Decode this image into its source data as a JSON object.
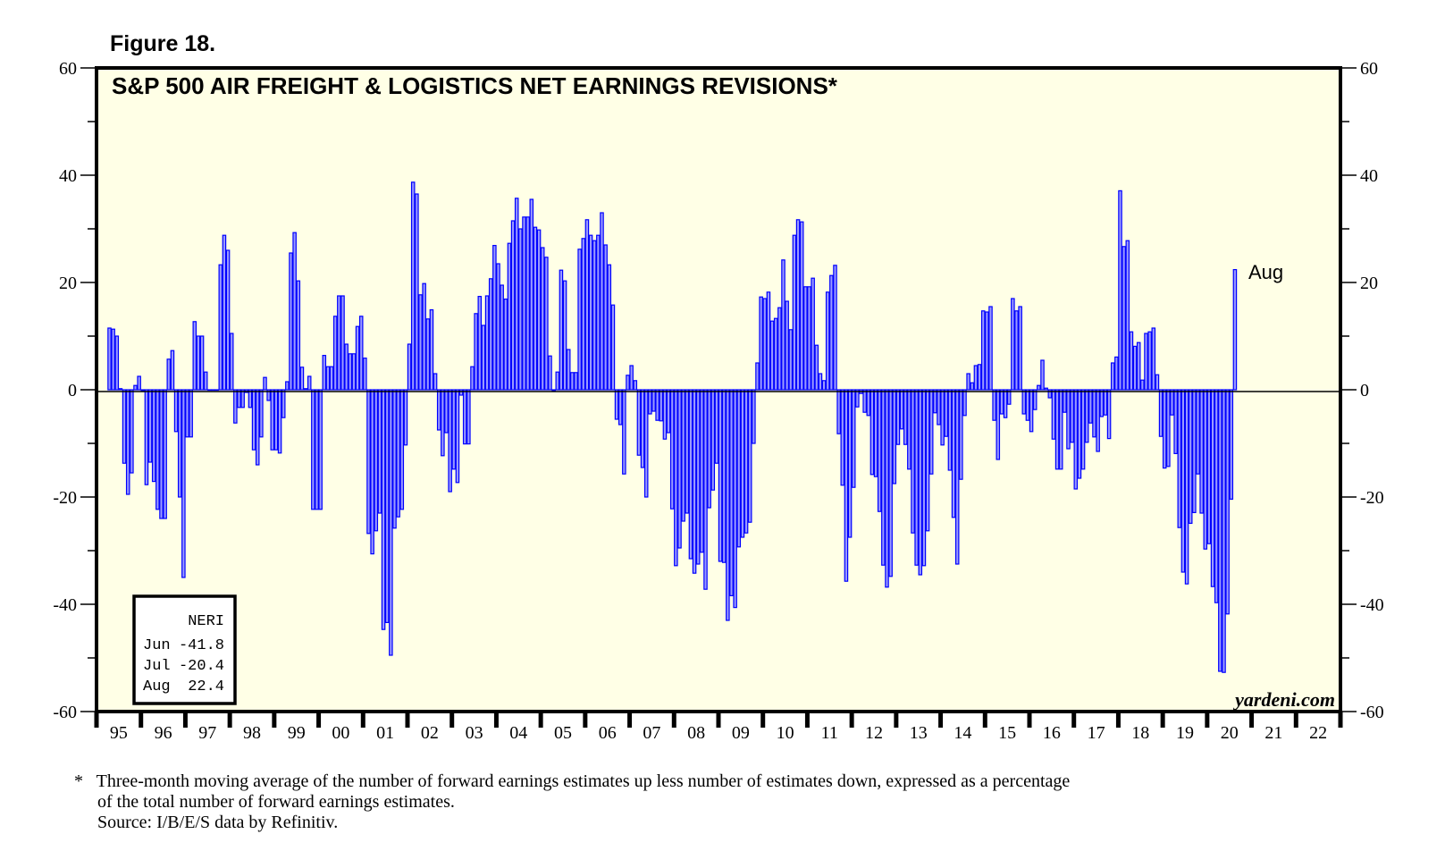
{
  "figure_label": "Figure 18.",
  "footnote": {
    "line1": "*   Three-month moving average of the number of forward earnings estimates up less number of estimates down, expressed as a percentage",
    "line2": "of the total number of forward earnings estimates.",
    "line3": "Source: I/B/E/S data by Refinitiv."
  },
  "watermark": "yardeni.com",
  "legend": {
    "title": "NERI",
    "rows": [
      {
        "month": "Jun",
        "value": "-41.8"
      },
      {
        "month": "Jul",
        "value": "-20.4"
      },
      {
        "month": "Aug",
        "value": "22.4"
      }
    ]
  },
  "colors": {
    "bar_fill": "#9999ff",
    "bar_stroke": "#0000ff",
    "plot_bg": "#ffffe6"
  },
  "chart_data": {
    "type": "bar",
    "title": "S&P 500 AIR FREIGHT & LOGISTICS NET EARNINGS REVISIONS*",
    "frequency": "monthly",
    "end": "2020-08",
    "annotation": "Aug",
    "ylim": [
      -60,
      60
    ],
    "yticks": [
      -60,
      -40,
      -20,
      0,
      20,
      40,
      60
    ],
    "ytick_labels": [
      "-60",
      "-40",
      "-20",
      "0",
      "20",
      "40",
      "60"
    ],
    "xlabels": [
      "95",
      "96",
      "97",
      "98",
      "99",
      "00",
      "01",
      "02",
      "03",
      "04",
      "05",
      "06",
      "07",
      "08",
      "09",
      "10",
      "11",
      "12",
      "13",
      "14",
      "15",
      "16",
      "17",
      "18",
      "19",
      "20",
      "21",
      "22"
    ],
    "values": [
      11.5,
      11.3,
      10,
      0.2,
      -13.7,
      -19.5,
      -15.5,
      0.8,
      2.5,
      -0.2,
      -17.7,
      -13.5,
      -17.1,
      -22.3,
      -24,
      -24,
      5.7,
      7.3,
      -7.8,
      -20,
      -35,
      -8.8,
      -8.8,
      12.7,
      10,
      10,
      3.3,
      0,
      0,
      0,
      23.3,
      28.8,
      26,
      10.5,
      -6.2,
      -3.3,
      -3.3,
      -0.5,
      -3.3,
      -11.2,
      -14,
      -8.8,
      2.3,
      -2,
      -11.2,
      -11.2,
      -11.8,
      -5.2,
      1.5,
      25.5,
      29.3,
      20.3,
      4.2,
      0.2,
      2.5,
      -22.3,
      -22.3,
      -22.3,
      6.4,
      4.3,
      4.3,
      13.7,
      17.5,
      17.5,
      8.5,
      6.7,
      6.7,
      11.8,
      13.7,
      5.9,
      -26.8,
      -30.6,
      -26.3,
      -23,
      -44.7,
      -43.4,
      -49.5,
      -25.8,
      -23.7,
      -22.3,
      -10.3,
      8.5,
      38.7,
      36.5,
      17.7,
      19.8,
      13.2,
      14.9,
      3,
      -7.5,
      -12.3,
      -8,
      -19,
      -14.8,
      -17.3,
      -1,
      -10.1,
      -10.1,
      4.3,
      14.2,
      17.4,
      12,
      17.5,
      20.7,
      26.9,
      23.5,
      19.5,
      16.9,
      27.3,
      31.5,
      35.7,
      30,
      32.2,
      32.2,
      35.5,
      30.3,
      29.8,
      26.5,
      24.7,
      6.3,
      -0.2,
      3.3,
      22.3,
      20.3,
      7.5,
      3.2,
      3.2,
      26.2,
      28.2,
      31.7,
      28.8,
      27.8,
      28.8,
      33,
      27,
      23.3,
      15.8,
      -5.5,
      -6.5,
      -15.7,
      2.7,
      4.5,
      1.7,
      -12.2,
      -14.5,
      -20,
      -4.5,
      -4,
      -5.7,
      -5.8,
      -9.2,
      -8,
      -22.2,
      -32.8,
      -29.5,
      -24.5,
      -23,
      -31.5,
      -34.2,
      -32.5,
      -30.3,
      -37.2,
      -22,
      -18.7,
      -13.7,
      -32,
      -32.2,
      -43,
      -38.4,
      -40.6,
      -29.3,
      -27.5,
      -26.7,
      -24.7,
      -10,
      5,
      17.3,
      17,
      18.2,
      12.8,
      13.3,
      15.3,
      24.2,
      16.5,
      11.2,
      28.8,
      31.7,
      31.3,
      19.2,
      19.2,
      20.8,
      8.3,
      3,
      1.7,
      18.2,
      21.3,
      23.2,
      -8.2,
      -17.8,
      -35.7,
      -27.5,
      -18.2,
      -3.2,
      -0.7,
      -4.2,
      -4.8,
      -15.8,
      -16.2,
      -22.7,
      -32.7,
      -36.8,
      -34.8,
      -17.5,
      -10.2,
      -7.3,
      -10.2,
      -14.8,
      -26.7,
      -32.7,
      -34.5,
      -32.8,
      -26.3,
      -15.7,
      -4.3,
      -6.5,
      -10.3,
      -8.7,
      -15,
      -23.8,
      -32.5,
      -16.7,
      -4.8,
      3,
      1.3,
      4.5,
      4.7,
      14.7,
      14.5,
      15.5,
      -5.7,
      -13,
      -4.5,
      -5.2,
      -2.7,
      17,
      14.7,
      15.5,
      -4.5,
      -5.7,
      -7.8,
      -3.7,
      0.8,
      5.5,
      0.3,
      -1.5,
      -9.2,
      -14.8,
      -14.8,
      -4.2,
      -11,
      -9.8,
      -18.5,
      -16.5,
      -14.8,
      -9.8,
      -6.2,
      -8.8,
      -11.5,
      -5,
      -4.7,
      -9.1,
      5,
      6.1,
      37.1,
      26.7,
      27.8,
      10.8,
      8.1,
      8.8,
      1.8,
      10.5,
      10.8,
      11.5,
      2.8,
      -8.7,
      -14.6,
      -14.3,
      -4.7,
      -11.9,
      -25.7,
      -34,
      -36.2,
      -24.9,
      -22.9,
      -15.7,
      -23,
      -29.7,
      -28.7,
      -36.7,
      -39.7,
      -52.5,
      -52.7,
      -41.8,
      -20.4,
      22.4
    ]
  }
}
